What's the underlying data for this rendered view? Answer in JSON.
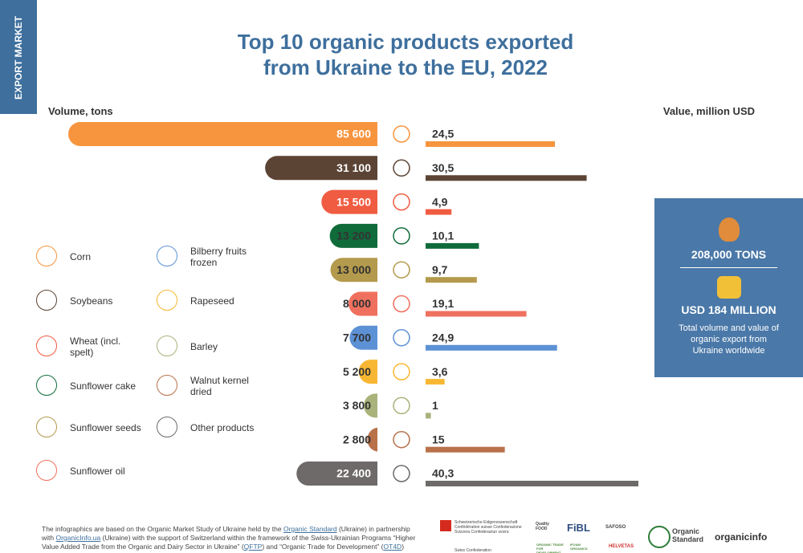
{
  "chart_data": {
    "type": "bar",
    "title": "Top 10 organic products exported from Ukraine to the EU, 2022",
    "categories": [
      "Corn",
      "Soybeans",
      "Wheat (incl. spelt)",
      "Sunflower cake",
      "Sunflower seeds",
      "Sunflower oil",
      "Bilberry fruits frozen",
      "Rapeseed",
      "Barley",
      "Walnut kernel dried",
      "Other products"
    ],
    "colors": [
      "#f7953f",
      "#5c4435",
      "#f05c42",
      "#106b3b",
      "#b49a4c",
      "#f0705f",
      "#5d91d6",
      "#f8b733",
      "#a9b27a",
      "#b9714a",
      "#6e6a6a"
    ],
    "series": [
      {
        "name": "Volume, tons",
        "values": [
          85600,
          31100,
          15500,
          13200,
          13000,
          8000,
          7700,
          5200,
          3800,
          2800,
          22400
        ],
        "value_labels": [
          "85 600",
          "31 100",
          "15 500",
          "13 200",
          "13 000",
          "8 000",
          "7 700",
          "5 200",
          "3 800",
          "2 800",
          "22 400"
        ]
      },
      {
        "name": "Value, million USD",
        "values": [
          24.5,
          30.5,
          4.9,
          10.1,
          9.7,
          19.1,
          24.9,
          3.6,
          1,
          15,
          40.3
        ],
        "value_labels": [
          "24,5",
          "30,5",
          "4,9",
          "10,1",
          "9,7",
          "19,1",
          "24,9",
          "3,6",
          "1",
          "15",
          "40,3"
        ]
      }
    ]
  },
  "sidebar": "EXPORT MARKET",
  "summary": {
    "tons": "208,000 TONS",
    "usd": "USD 184 MILLION",
    "note": "Total volume and value of organic export from Ukraine worldwide"
  },
  "footer": {
    "parts": [
      {
        "text": "The infographics are based on the Organic Market Study of Ukraine held by the "
      },
      {
        "text": "Organic Standard",
        "link": true
      },
      {
        "text": " (Ukraine) in partnership with "
      },
      {
        "text": "OrganicInfo.ua",
        "link": true
      },
      {
        "text": " (Ukraine) with the support of Switzerland within the framework of the Swiss-Ukrainian Programs “Higher Value Added Trade from the Organic and Dairy Sector in Ukraine” ("
      },
      {
        "text": "QFTP",
        "link": true
      },
      {
        "text": ") and “Organic Trade for Development” ("
      },
      {
        "text": "OT4D",
        "link": true
      },
      {
        "text": ")"
      }
    ]
  },
  "logos": {
    "swiss": "Schweizerische Eidgenossenschaft Confédération suisse Confederazione Svizzera Confederaziun svizra",
    "swiss2": "Swiss Confederation",
    "quality": "Quality FOOD",
    "fibl": "FiBL",
    "safoso": "SAFOSO",
    "otd": "ORGANIC TRADE FOR DEVELOPMENT",
    "ifoam": "IFOAM ORGANICS",
    "helvetas": "HELVETAS",
    "os": "Organic Standard",
    "oi": "organicinfo"
  }
}
